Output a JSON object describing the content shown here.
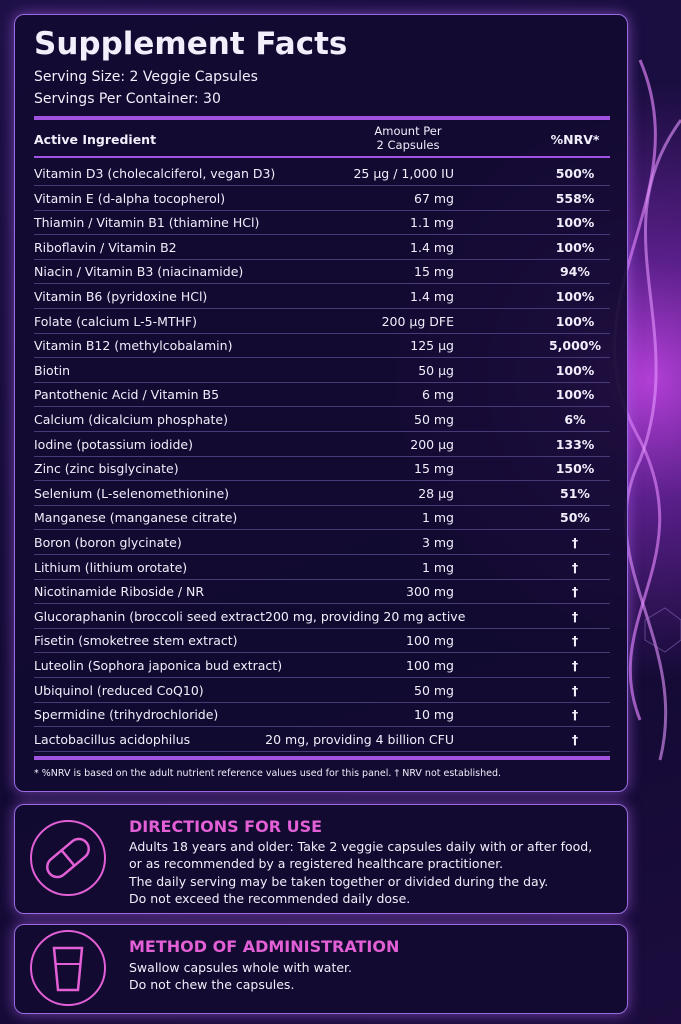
{
  "header": {
    "title": "Supplement Facts",
    "serving_size": "Serving Size: 2 Veggie Capsules",
    "servings_per_container": "Servings Per Container: 30"
  },
  "table": {
    "columns": {
      "ingredient": "Active Ingredient",
      "amount": [
        "Amount Per",
        "2 Capsules"
      ],
      "nrv": "%NRV*"
    },
    "rows": [
      {
        "ingredient": "Vitamin D3 (cholecalciferol, vegan D3)",
        "amount": "25 µg / 1,000 IU",
        "nrv": "500%"
      },
      {
        "ingredient": "Vitamin E (d-alpha tocopherol)",
        "amount": "67 mg",
        "nrv": "558%"
      },
      {
        "ingredient": "Thiamin / Vitamin B1 (thiamine HCl)",
        "amount": "1.1 mg",
        "nrv": "100%"
      },
      {
        "ingredient": "Riboflavin / Vitamin B2",
        "amount": "1.4 mg",
        "nrv": "100%"
      },
      {
        "ingredient": "Niacin / Vitamin B3 (niacinamide)",
        "amount": "15 mg",
        "nrv": "94%"
      },
      {
        "ingredient": "Vitamin B6 (pyridoxine HCl)",
        "amount": "1.4 mg",
        "nrv": "100%"
      },
      {
        "ingredient": "Folate (calcium L-5-MTHF)",
        "amount": "200 µg DFE",
        "nrv": "100%"
      },
      {
        "ingredient": "Vitamin B12 (methylcobalamin)",
        "amount": "125 µg",
        "nrv": "5,000%"
      },
      {
        "ingredient": "Biotin",
        "amount": "50 µg",
        "nrv": "100%"
      },
      {
        "ingredient": "Pantothenic Acid / Vitamin B5",
        "amount": "6 mg",
        "nrv": "100%"
      },
      {
        "ingredient": "Calcium (dicalcium phosphate)",
        "amount": "50 mg",
        "nrv": "6%"
      },
      {
        "ingredient": "Iodine (potassium iodide)",
        "amount": "200 µg",
        "nrv": "133%"
      },
      {
        "ingredient": "Zinc (zinc bisglycinate)",
        "amount": "15 mg",
        "nrv": "150%"
      },
      {
        "ingredient": "Selenium (L-selenomethionine)",
        "amount": "28 µg",
        "nrv": "51%"
      },
      {
        "ingredient": "Manganese (manganese citrate)",
        "amount": "1 mg",
        "nrv": "50%"
      },
      {
        "ingredient": "Boron (boron glycinate)",
        "amount": "3 mg",
        "nrv": "†"
      },
      {
        "ingredient": "Lithium (lithium orotate)",
        "amount": "1 mg",
        "nrv": "†"
      },
      {
        "ingredient": "Nicotinamide Riboside / NR",
        "amount": "300 mg",
        "nrv": "†"
      },
      {
        "ingredient": "Glucoraphanin (broccoli seed extract200 mg, providing 20 mg active",
        "nrv": "†"
      },
      {
        "ingredient": "Fisetin (smoketree stem extract)",
        "amount": "100 mg",
        "nrv": "†"
      },
      {
        "ingredient": "Luteolin (Sophora japonica bud extract)",
        "amount": "100 mg",
        "nrv": "†"
      },
      {
        "ingredient": "Ubiquinol (reduced CoQ10)",
        "amount": "50 mg",
        "nrv": "†"
      },
      {
        "ingredient": "Spermidine (trihydrochloride)",
        "amount": "10 mg",
        "nrv": "†"
      },
      {
        "ingredient": "Lactobacillus acidophilus",
        "amount": "20 mg, providing 4 billion CFU",
        "nrv": "†"
      }
    ],
    "footnote": "* %NRV is based on the adult nutrient reference values used for this panel.  † NRV not established."
  },
  "directions": {
    "title": "DIRECTIONS FOR USE",
    "lines": [
      "Adults 18 years and older: Take 2 veggie capsules daily with or after food,",
      "or as recommended by a registered healthcare practitioner.",
      "The daily serving may be taken together or divided during the day.",
      "Do not exceed the recommended daily dose."
    ]
  },
  "administration": {
    "title": "METHOD OF ADMINISTRATION",
    "lines": [
      "Swallow capsules whole with water.",
      "Do not chew the capsules."
    ]
  }
}
